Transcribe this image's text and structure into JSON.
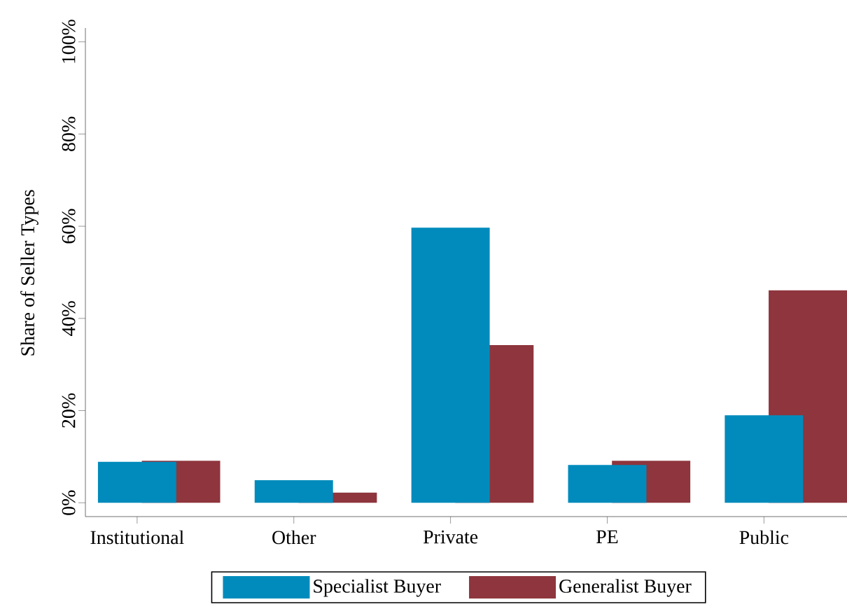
{
  "chart_data": {
    "type": "bar",
    "ylabel": "Share of Seller Types",
    "categories": [
      "Institutional",
      "Other",
      "Private",
      "PE",
      "Public"
    ],
    "series": [
      {
        "name": "Specialist Buyer",
        "color": "#008bbc",
        "values": [
          8.9,
          4.9,
          59.7,
          8.2,
          19.0
        ]
      },
      {
        "name": "Generalist Buyer",
        "color": "#8e353d",
        "values": [
          9.1,
          2.2,
          34.2,
          9.1,
          46.1
        ]
      }
    ],
    "ylim": [
      -3,
      103
    ],
    "yticks": [
      {
        "value": 0,
        "label": "0%"
      },
      {
        "value": 20,
        "label": "20%"
      },
      {
        "value": 40,
        "label": "40%"
      },
      {
        "value": 60,
        "label": "60%"
      },
      {
        "value": 80,
        "label": "80%"
      },
      {
        "value": 100,
        "label": "100%"
      }
    ],
    "grid": false,
    "legend": "bottom"
  }
}
